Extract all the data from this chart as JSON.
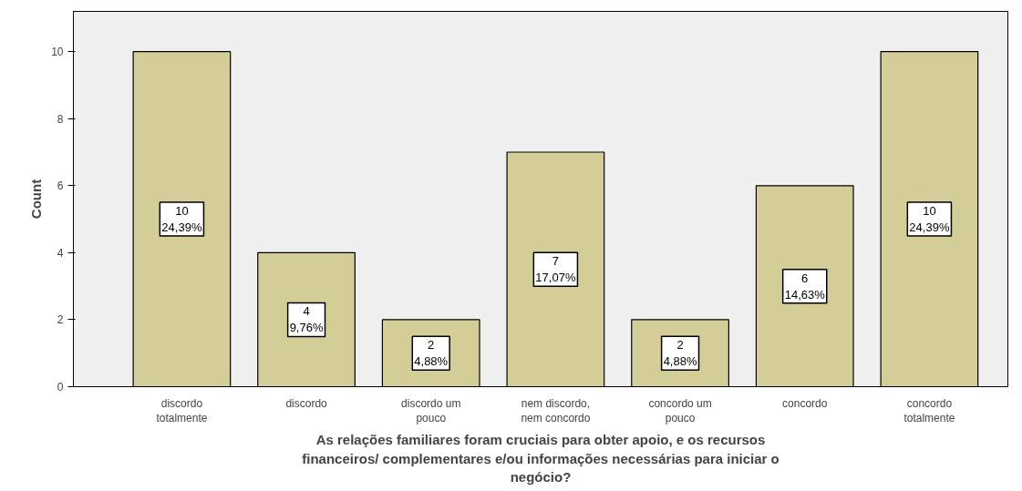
{
  "chart_data": {
    "type": "bar",
    "xlabel": "As relações familiares foram cruciais para obter apoio, e os recursos\nfinanceiros/ complementares e/ou informações necessárias para iniciar o\nnegócio?",
    "ylabel": "Count",
    "categories": [
      "discordo\ntotalmente",
      "discordo",
      "discordo um\npouco",
      "nem discordo,\nnem concordo",
      "concordo um\npouco",
      "concordo",
      "concordo\ntotalmente"
    ],
    "values": [
      10,
      4,
      2,
      7,
      2,
      6,
      10
    ],
    "color": "#d3ce97",
    "value_labels": [
      "10\n24,39%",
      "4\n9,76%",
      "2\n4,88%",
      "7\n17,07%",
      "2\n4,88%",
      "6\n14,63%",
      "10\n24,39%"
    ],
    "ylim": [
      0,
      11.2
    ],
    "yticks": [
      0,
      2,
      4,
      6,
      8,
      10
    ],
    "grid": false
  }
}
